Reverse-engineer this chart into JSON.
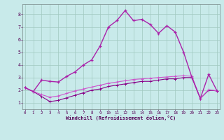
{
  "xlabel": "Windchill (Refroidissement éolien,°C)",
  "background_color": "#c8eaea",
  "grid_color": "#a0c8c0",
  "x": [
    0,
    1,
    2,
    3,
    4,
    5,
    6,
    7,
    8,
    9,
    10,
    11,
    12,
    13,
    14,
    15,
    16,
    17,
    18,
    19,
    20,
    21,
    22,
    23
  ],
  "line1": [
    2.2,
    1.9,
    1.5,
    1.1,
    1.2,
    1.4,
    1.6,
    1.8,
    2.0,
    2.1,
    2.3,
    2.4,
    2.5,
    2.6,
    2.7,
    2.7,
    2.8,
    2.9,
    2.9,
    3.0,
    3.0,
    1.35,
    2.0,
    1.95
  ],
  "line2": [
    2.2,
    1.9,
    1.65,
    1.45,
    1.55,
    1.75,
    1.95,
    2.1,
    2.25,
    2.4,
    2.55,
    2.65,
    2.75,
    2.85,
    2.9,
    2.95,
    3.0,
    3.05,
    3.1,
    3.15,
    3.1,
    1.35,
    2.05,
    1.95
  ],
  "line3": [
    2.2,
    1.9,
    2.8,
    2.7,
    2.65,
    3.1,
    3.45,
    4.0,
    4.4,
    5.5,
    7.0,
    7.5,
    8.3,
    7.5,
    7.6,
    7.2,
    6.5,
    7.1,
    6.6,
    5.0,
    3.0,
    1.35,
    3.25,
    1.95
  ],
  "line_color_dark": "#880088",
  "line_color_mid": "#aa22aa",
  "line_color_light": "#cc55cc",
  "ylim": [
    0.5,
    8.8
  ],
  "xlim": [
    -0.3,
    23.3
  ],
  "yticks": [
    1,
    2,
    3,
    4,
    5,
    6,
    7,
    8
  ],
  "xticks": [
    0,
    1,
    2,
    3,
    4,
    5,
    6,
    7,
    8,
    9,
    10,
    11,
    12,
    13,
    14,
    15,
    16,
    17,
    18,
    19,
    20,
    21,
    22,
    23
  ]
}
